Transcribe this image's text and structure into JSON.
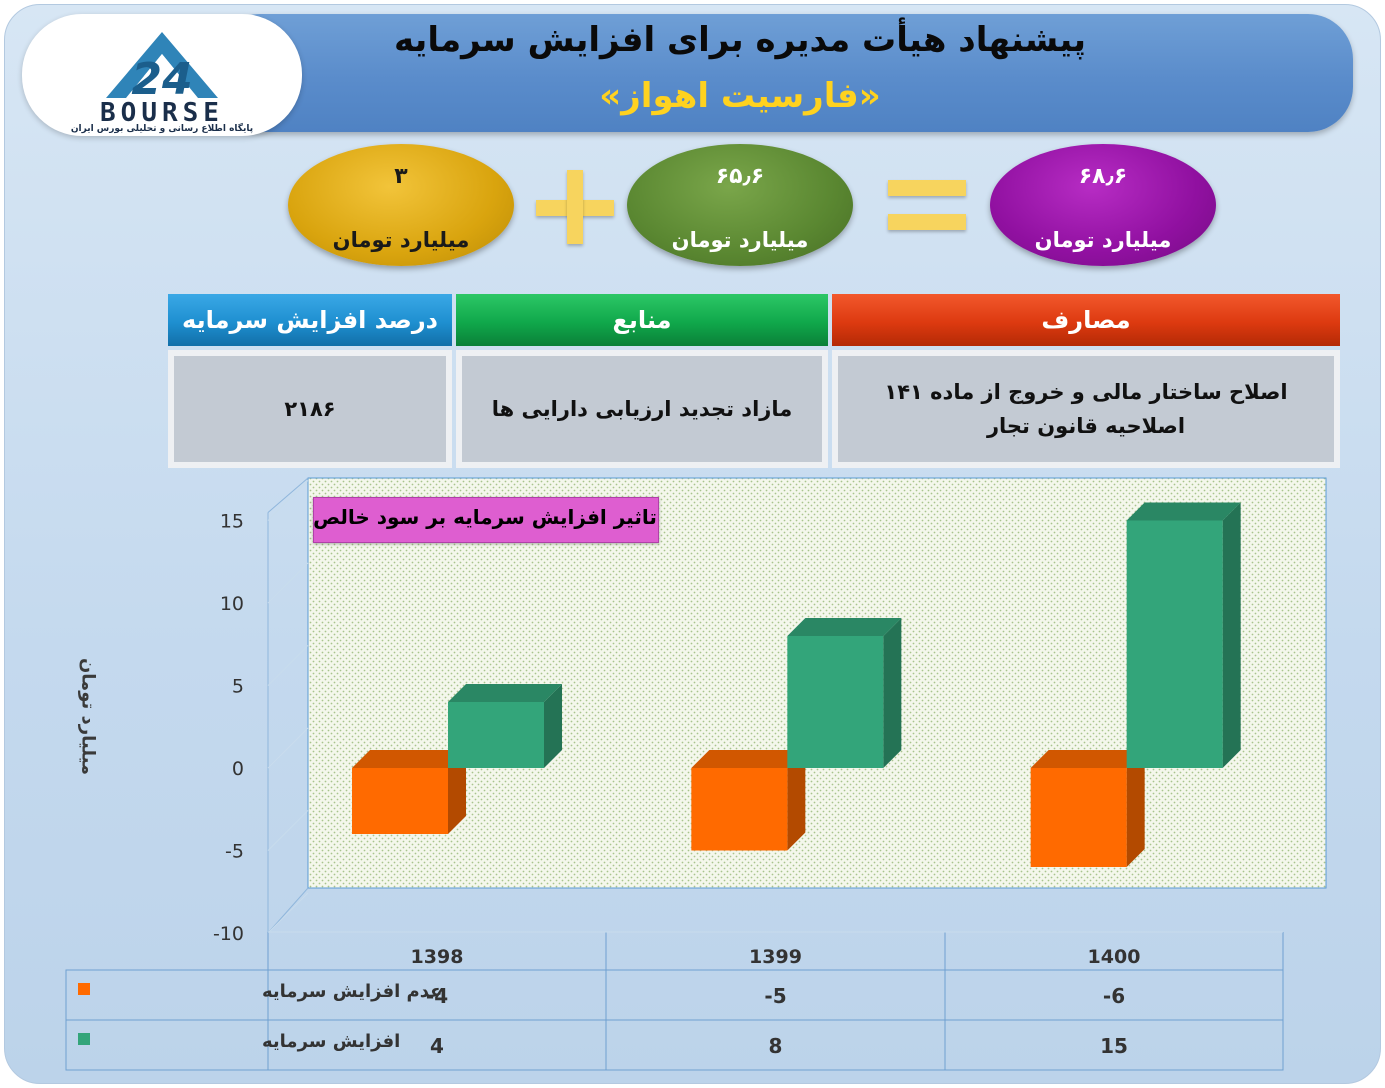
{
  "header": {
    "title": "پیشنهاد هیأت مدیره برای افزایش سرمایه",
    "subtitle": "«فارسیت اهواز»"
  },
  "logo": {
    "word": "BOURSE",
    "tagline": "پایگاه اطلاع رسانی و تحلیلی بورس ایران"
  },
  "equation": {
    "left": {
      "value": "۳",
      "unit": "میلیارد تومان"
    },
    "middle": {
      "value": "۶۵٫۶",
      "unit": "میلیارد تومان"
    },
    "result": {
      "value": "۶۸٫۶",
      "unit": "میلیارد تومان"
    }
  },
  "table": {
    "headers": {
      "percent": "درصد افزایش سرمایه",
      "sources": "منابع",
      "uses": "مصارف"
    },
    "values": {
      "percent": "۲۱۸۶",
      "sources": "مازاد تجدید ارزیابی دارایی ها",
      "uses": "اصلاح ساختار مالی و خروج از ماده ۱۴۱ اصلاحیه قانون تجار"
    },
    "colors": {
      "percent": "#1e8fd0",
      "sources": "#10a84b",
      "uses": "#dd3a10"
    }
  },
  "chart_data": {
    "type": "bar",
    "title": "تاثیر افزایش سرمایه بر سود خالص",
    "ylabel": "میلیارد تومان",
    "categories": [
      "1398",
      "1399",
      "1400"
    ],
    "ylim": [
      -10,
      15
    ],
    "yticks": [
      "15",
      "10",
      "5",
      "0",
      "-5",
      "-10"
    ],
    "series": [
      {
        "name": "عدم افزایش سرمایه",
        "values": [
          -4,
          -5,
          -6
        ],
        "color": "#ff6a00"
      },
      {
        "name": "افزایش سرمایه",
        "values": [
          4,
          8,
          15
        ],
        "color": "#33a57a"
      }
    ],
    "table_values": [
      [
        "-4",
        "-5",
        "-6"
      ],
      [
        "4",
        "8",
        "15"
      ]
    ]
  }
}
